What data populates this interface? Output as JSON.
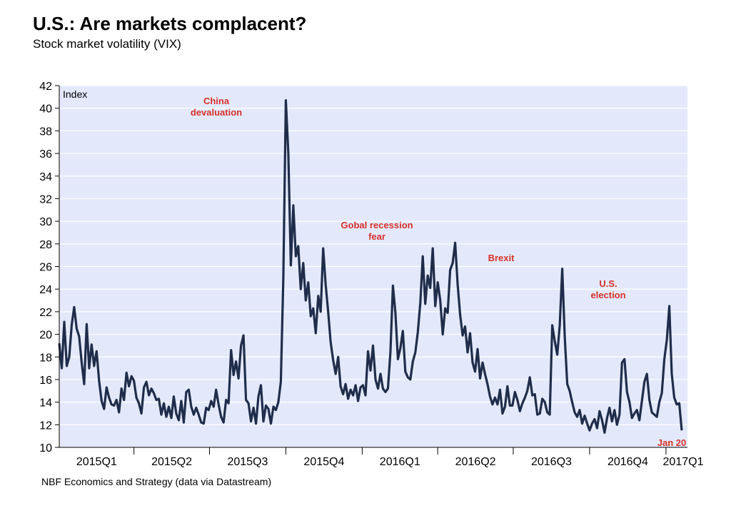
{
  "title": "U.S.: Are markets complacent?",
  "subtitle": "Stock market volatility (VIX)",
  "source": "NBF Economics and Strategy (data via Datastream)",
  "colors": {
    "line": "#1f2d4a",
    "plot_bg": "#e3e9fb",
    "grid": "#ffffff",
    "annotation": "#d6312a"
  },
  "chart_data": {
    "type": "line",
    "title": "U.S.: Are markets complacent?",
    "subtitle": "Stock market volatility (VIX)",
    "ylabel": "Index",
    "xlabel": "",
    "ylim": [
      10,
      42
    ],
    "yticks": [
      10,
      12,
      14,
      16,
      18,
      20,
      22,
      24,
      26,
      28,
      30,
      32,
      34,
      36,
      38,
      40,
      42
    ],
    "xlim": [
      "2015-01-01",
      "2017-01-20"
    ],
    "categories": [
      "2015Q1",
      "2015Q2",
      "2015Q3",
      "2015Q4",
      "2016Q1",
      "2016Q2",
      "2016Q3",
      "2016Q4",
      "2017Q1"
    ],
    "grid": true,
    "annotations": [
      {
        "text": [
          "China",
          "devaluation"
        ],
        "x": "2015-08-24",
        "y": 40.7
      },
      {
        "text": [
          "Gobal recession",
          "fear"
        ],
        "x": "2016-02-11",
        "y": 28.1
      },
      {
        "text": [
          "Brexit"
        ],
        "x": "2016-06-27",
        "y": 25.8
      },
      {
        "text": [
          "U.S.",
          "election"
        ],
        "x": "2016-11-04",
        "y": 22.5
      },
      {
        "text": [
          "Jan 20"
        ],
        "x": "2017-01-20",
        "y": 11.5
      }
    ],
    "series": [
      {
        "values": [
          [
            "2015-01-01",
            19.2
          ],
          [
            "2015-01-04",
            17.0
          ],
          [
            "2015-01-07",
            21.1
          ],
          [
            "2015-01-10",
            17.2
          ],
          [
            "2015-01-13",
            18.0
          ],
          [
            "2015-01-16",
            20.8
          ],
          [
            "2015-01-19",
            22.4
          ],
          [
            "2015-01-22",
            20.5
          ],
          [
            "2015-01-25",
            19.8
          ],
          [
            "2015-01-28",
            17.5
          ],
          [
            "2015-01-31",
            15.6
          ],
          [
            "2015-02-03",
            20.9
          ],
          [
            "2015-02-06",
            17.0
          ],
          [
            "2015-02-09",
            19.1
          ],
          [
            "2015-02-12",
            17.2
          ],
          [
            "2015-02-15",
            18.5
          ],
          [
            "2015-02-18",
            15.9
          ],
          [
            "2015-02-21",
            14.1
          ],
          [
            "2015-02-24",
            13.4
          ],
          [
            "2015-02-27",
            15.3
          ],
          [
            "2015-03-02",
            14.4
          ],
          [
            "2015-03-05",
            13.8
          ],
          [
            "2015-03-08",
            13.7
          ],
          [
            "2015-03-11",
            14.2
          ],
          [
            "2015-03-14",
            13.1
          ],
          [
            "2015-03-17",
            15.2
          ],
          [
            "2015-03-20",
            14.2
          ],
          [
            "2015-03-23",
            16.6
          ],
          [
            "2015-03-26",
            15.4
          ],
          [
            "2015-03-29",
            16.3
          ],
          [
            "2015-04-01",
            15.9
          ],
          [
            "2015-04-04",
            14.4
          ],
          [
            "2015-04-07",
            13.9
          ],
          [
            "2015-04-10",
            13.0
          ],
          [
            "2015-04-13",
            15.3
          ],
          [
            "2015-04-16",
            15.8
          ],
          [
            "2015-04-19",
            14.6
          ],
          [
            "2015-04-22",
            15.2
          ],
          [
            "2015-04-25",
            14.8
          ],
          [
            "2015-04-28",
            14.2
          ],
          [
            "2015-05-01",
            14.3
          ],
          [
            "2015-05-04",
            12.9
          ],
          [
            "2015-05-07",
            13.9
          ],
          [
            "2015-05-10",
            12.7
          ],
          [
            "2015-05-13",
            13.6
          ],
          [
            "2015-05-16",
            12.6
          ],
          [
            "2015-05-19",
            14.5
          ],
          [
            "2015-05-22",
            13.0
          ],
          [
            "2015-05-25",
            12.4
          ],
          [
            "2015-05-28",
            14.1
          ],
          [
            "2015-05-31",
            12.2
          ],
          [
            "2015-06-03",
            14.9
          ],
          [
            "2015-06-06",
            15.1
          ],
          [
            "2015-06-09",
            13.6
          ],
          [
            "2015-06-12",
            12.9
          ],
          [
            "2015-06-15",
            13.5
          ],
          [
            "2015-06-18",
            12.9
          ],
          [
            "2015-06-21",
            12.2
          ],
          [
            "2015-06-24",
            12.1
          ],
          [
            "2015-06-27",
            13.5
          ],
          [
            "2015-06-30",
            13.3
          ],
          [
            "2015-07-03",
            14.1
          ],
          [
            "2015-07-06",
            13.6
          ],
          [
            "2015-07-09",
            15.1
          ],
          [
            "2015-07-12",
            13.8
          ],
          [
            "2015-07-15",
            12.7
          ],
          [
            "2015-07-18",
            12.2
          ],
          [
            "2015-07-21",
            14.2
          ],
          [
            "2015-07-24",
            13.9
          ],
          [
            "2015-07-27",
            18.6
          ],
          [
            "2015-07-30",
            16.4
          ],
          [
            "2015-08-02",
            17.6
          ],
          [
            "2015-08-05",
            16.1
          ],
          [
            "2015-08-08",
            19.0
          ],
          [
            "2015-08-11",
            19.9
          ],
          [
            "2015-08-14",
            14.2
          ],
          [
            "2015-08-17",
            13.9
          ],
          [
            "2015-08-20",
            12.3
          ],
          [
            "2015-08-23",
            13.5
          ],
          [
            "2015-08-26",
            12.1
          ],
          [
            "2015-08-29",
            14.5
          ],
          [
            "2015-09-01",
            15.5
          ],
          [
            "2015-09-04",
            12.3
          ],
          [
            "2015-09-07",
            13.7
          ],
          [
            "2015-09-10",
            13.4
          ],
          [
            "2015-09-13",
            12.1
          ],
          [
            "2015-09-16",
            13.6
          ],
          [
            "2015-09-19",
            13.3
          ],
          [
            "2015-09-22",
            14.0
          ],
          [
            "2015-09-25",
            15.8
          ],
          [
            "2015-09-28",
            25.0
          ],
          [
            "2015-10-01",
            40.7
          ],
          [
            "2015-10-04",
            36.0
          ],
          [
            "2015-10-07",
            26.1
          ],
          [
            "2015-10-10",
            31.4
          ],
          [
            "2015-10-13",
            26.9
          ],
          [
            "2015-10-16",
            27.8
          ],
          [
            "2015-10-19",
            24.0
          ],
          [
            "2015-10-22",
            26.3
          ],
          [
            "2015-10-25",
            23.0
          ],
          [
            "2015-10-28",
            24.6
          ],
          [
            "2015-10-31",
            21.6
          ],
          [
            "2015-11-03",
            22.3
          ],
          [
            "2015-11-06",
            20.1
          ],
          [
            "2015-11-09",
            23.4
          ],
          [
            "2015-11-12",
            22.0
          ],
          [
            "2015-11-15",
            27.6
          ],
          [
            "2015-11-18",
            24.4
          ],
          [
            "2015-11-21",
            22.0
          ],
          [
            "2015-11-24",
            19.3
          ],
          [
            "2015-11-27",
            17.7
          ],
          [
            "2015-11-30",
            16.5
          ],
          [
            "2015-12-03",
            18.0
          ],
          [
            "2015-12-06",
            15.4
          ],
          [
            "2015-12-09",
            14.7
          ],
          [
            "2015-12-12",
            15.6
          ],
          [
            "2015-12-15",
            14.3
          ],
          [
            "2015-12-18",
            15.1
          ],
          [
            "2015-12-21",
            14.6
          ],
          [
            "2015-12-24",
            15.5
          ],
          [
            "2015-12-27",
            14.1
          ],
          [
            "2015-12-30",
            15.3
          ],
          [
            "2016-01-02",
            15.5
          ],
          [
            "2016-01-05",
            14.6
          ],
          [
            "2016-01-08",
            18.5
          ],
          [
            "2016-01-11",
            16.8
          ],
          [
            "2016-01-14",
            19.0
          ],
          [
            "2016-01-17",
            16.0
          ],
          [
            "2016-01-20",
            15.2
          ],
          [
            "2016-01-23",
            16.5
          ],
          [
            "2016-01-26",
            15.2
          ],
          [
            "2016-01-29",
            14.9
          ],
          [
            "2016-02-01",
            15.2
          ],
          [
            "2016-02-04",
            18.4
          ],
          [
            "2016-02-07",
            24.3
          ],
          [
            "2016-02-10",
            21.9
          ],
          [
            "2016-02-13",
            17.8
          ],
          [
            "2016-02-16",
            18.8
          ],
          [
            "2016-02-19",
            20.3
          ],
          [
            "2016-02-22",
            16.7
          ],
          [
            "2016-02-25",
            16.2
          ],
          [
            "2016-02-28",
            16.0
          ],
          [
            "2016-03-02",
            17.6
          ],
          [
            "2016-03-05",
            18.4
          ],
          [
            "2016-03-08",
            20.2
          ],
          [
            "2016-03-11",
            22.8
          ],
          [
            "2016-03-14",
            26.9
          ],
          [
            "2016-03-17",
            22.7
          ],
          [
            "2016-03-20",
            25.2
          ],
          [
            "2016-03-23",
            24.1
          ],
          [
            "2016-03-26",
            27.6
          ],
          [
            "2016-03-29",
            22.5
          ],
          [
            "2016-04-01",
            24.6
          ],
          [
            "2016-04-04",
            23.0
          ],
          [
            "2016-04-07",
            20.0
          ],
          [
            "2016-04-10",
            22.3
          ],
          [
            "2016-04-13",
            21.9
          ],
          [
            "2016-04-16",
            25.7
          ],
          [
            "2016-04-19",
            26.3
          ],
          [
            "2016-04-22",
            28.1
          ],
          [
            "2016-04-25",
            24.4
          ],
          [
            "2016-04-28",
            21.7
          ],
          [
            "2016-05-01",
            19.9
          ],
          [
            "2016-05-04",
            20.7
          ],
          [
            "2016-05-07",
            18.4
          ],
          [
            "2016-05-10",
            20.1
          ],
          [
            "2016-05-13",
            17.5
          ],
          [
            "2016-05-16",
            16.7
          ],
          [
            "2016-05-19",
            18.7
          ],
          [
            "2016-05-22",
            16.1
          ],
          [
            "2016-05-25",
            17.5
          ],
          [
            "2016-05-28",
            16.5
          ],
          [
            "2016-05-31",
            15.6
          ],
          [
            "2016-06-03",
            14.5
          ],
          [
            "2016-06-06",
            13.8
          ],
          [
            "2016-06-09",
            14.4
          ],
          [
            "2016-06-12",
            13.8
          ],
          [
            "2016-06-15",
            15.1
          ],
          [
            "2016-06-18",
            13.0
          ],
          [
            "2016-06-21",
            13.6
          ],
          [
            "2016-06-24",
            15.4
          ],
          [
            "2016-06-27",
            13.7
          ],
          [
            "2016-06-30",
            13.7
          ],
          [
            "2016-07-03",
            14.9
          ],
          [
            "2016-07-06",
            14.2
          ],
          [
            "2016-07-09",
            13.2
          ],
          [
            "2016-07-12",
            13.9
          ],
          [
            "2016-07-15",
            14.4
          ],
          [
            "2016-07-18",
            15.0
          ],
          [
            "2016-07-21",
            16.2
          ],
          [
            "2016-07-24",
            14.6
          ],
          [
            "2016-07-27",
            14.7
          ],
          [
            "2016-07-30",
            12.9
          ],
          [
            "2016-08-02",
            13.0
          ],
          [
            "2016-08-05",
            14.3
          ],
          [
            "2016-08-08",
            14.0
          ],
          [
            "2016-08-11",
            13.1
          ],
          [
            "2016-08-14",
            12.9
          ],
          [
            "2016-08-17",
            20.8
          ],
          [
            "2016-08-20",
            19.4
          ],
          [
            "2016-08-23",
            18.2
          ],
          [
            "2016-08-26",
            20.8
          ],
          [
            "2016-08-29",
            25.8
          ],
          [
            "2016-09-01",
            19.8
          ],
          [
            "2016-09-04",
            15.6
          ],
          [
            "2016-09-07",
            15.0
          ],
          [
            "2016-09-10",
            14.0
          ],
          [
            "2016-09-13",
            13.1
          ],
          [
            "2016-09-16",
            12.7
          ],
          [
            "2016-09-19",
            13.3
          ],
          [
            "2016-09-22",
            12.1
          ],
          [
            "2016-09-25",
            12.8
          ],
          [
            "2016-09-28",
            12.1
          ],
          [
            "2016-10-01",
            11.5
          ],
          [
            "2016-10-04",
            12.1
          ],
          [
            "2016-10-07",
            12.5
          ],
          [
            "2016-10-10",
            11.7
          ],
          [
            "2016-10-13",
            13.2
          ],
          [
            "2016-10-16",
            12.4
          ],
          [
            "2016-10-19",
            11.3
          ],
          [
            "2016-10-22",
            12.6
          ],
          [
            "2016-10-25",
            13.5
          ],
          [
            "2016-10-28",
            12.3
          ],
          [
            "2016-10-31",
            13.3
          ],
          [
            "2016-11-03",
            12.0
          ],
          [
            "2016-11-06",
            12.9
          ],
          [
            "2016-11-09",
            17.5
          ],
          [
            "2016-11-12",
            17.8
          ],
          [
            "2016-11-15",
            14.9
          ],
          [
            "2016-11-18",
            14.0
          ],
          [
            "2016-11-21",
            12.6
          ],
          [
            "2016-11-24",
            13.0
          ],
          [
            "2016-11-27",
            13.3
          ],
          [
            "2016-11-30",
            12.4
          ],
          [
            "2016-12-03",
            14.1
          ],
          [
            "2016-12-06",
            15.8
          ],
          [
            "2016-12-09",
            16.5
          ],
          [
            "2016-12-12",
            14.2
          ],
          [
            "2016-12-15",
            13.1
          ],
          [
            "2016-12-18",
            12.9
          ],
          [
            "2016-12-21",
            12.7
          ],
          [
            "2016-12-24",
            14.0
          ],
          [
            "2016-12-27",
            14.8
          ],
          [
            "2016-12-30",
            17.8
          ],
          [
            "2017-01-02",
            19.5
          ],
          [
            "2017-01-05",
            22.5
          ],
          [
            "2017-01-08",
            16.5
          ],
          [
            "2017-01-11",
            14.4
          ],
          [
            "2017-01-14",
            13.8
          ],
          [
            "2017-01-17",
            13.9
          ],
          [
            "2017-01-20",
            11.5
          ]
        ]
      }
    ]
  }
}
